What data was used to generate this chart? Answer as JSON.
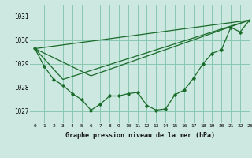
{
  "title": "Graphe pression niveau de la mer (hPa)",
  "bg_color": "#cce8e0",
  "grid_color": "#88c8b0",
  "line_color": "#1a6b2a",
  "marker_color": "#1a6b2a",
  "xlim": [
    -0.5,
    23
  ],
  "ylim": [
    1026.5,
    1031.5
  ],
  "yticks": [
    1027,
    1028,
    1029,
    1030,
    1031
  ],
  "xticks": [
    0,
    1,
    2,
    3,
    4,
    5,
    6,
    7,
    8,
    9,
    10,
    11,
    12,
    13,
    14,
    15,
    16,
    17,
    18,
    19,
    20,
    21,
    22,
    23
  ],
  "series1_x": [
    0,
    1,
    2,
    3,
    4,
    5,
    6,
    7,
    8,
    9,
    10,
    11,
    12,
    13,
    14,
    15,
    16,
    17,
    18,
    19,
    20,
    21,
    22,
    23
  ],
  "series1_y": [
    1029.65,
    1028.9,
    1028.35,
    1028.1,
    1027.75,
    1027.5,
    1027.05,
    1027.3,
    1027.65,
    1027.65,
    1027.75,
    1027.8,
    1027.25,
    1027.05,
    1027.1,
    1027.7,
    1027.9,
    1028.4,
    1029.0,
    1029.45,
    1029.6,
    1030.55,
    1030.35,
    1030.85
  ],
  "series2_x": [
    0,
    23
  ],
  "series2_y": [
    1029.65,
    1030.85
  ],
  "series3_x": [
    0,
    3,
    23
  ],
  "series3_y": [
    1029.65,
    1028.35,
    1030.85
  ],
  "series4_x": [
    0,
    6,
    23
  ],
  "series4_y": [
    1029.65,
    1028.5,
    1030.85
  ]
}
